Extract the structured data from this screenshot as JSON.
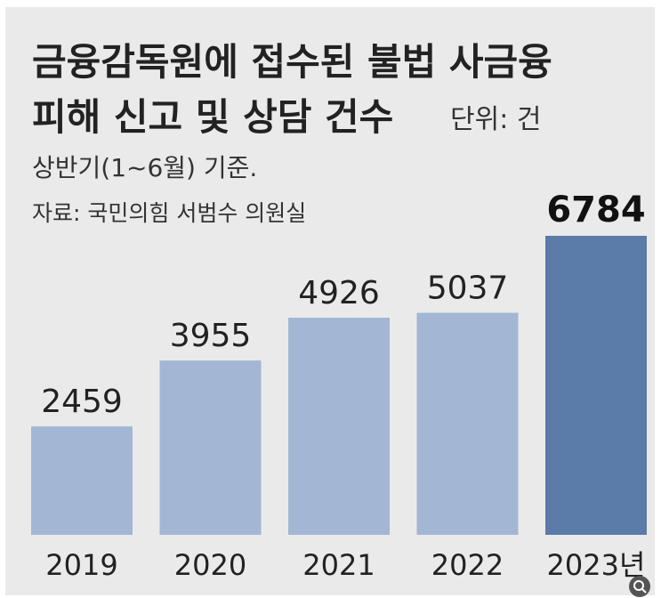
{
  "title_line1": "금융감독원에 접수된 불법 사금융",
  "title_line2": "피해 신고 및 상담 건수",
  "unit": "단위: 건",
  "note": "상반기(1~6월) 기준.",
  "source": "자료: 국민의힘 서범수 의원실",
  "colors": {
    "background": "#eaeaea",
    "bar": "#a3b6d3",
    "bar_highlight": "#5b7ba8"
  },
  "chart_data": {
    "type": "bar",
    "categories": [
      "2019",
      "2020",
      "2021",
      "2022",
      "2023년"
    ],
    "values": [
      2459,
      3955,
      4926,
      5037,
      6784
    ],
    "value_labels": [
      "2459",
      "3955",
      "4926",
      "5037",
      "6784"
    ],
    "highlight_index": 4,
    "ylim": [
      0,
      6784
    ]
  }
}
